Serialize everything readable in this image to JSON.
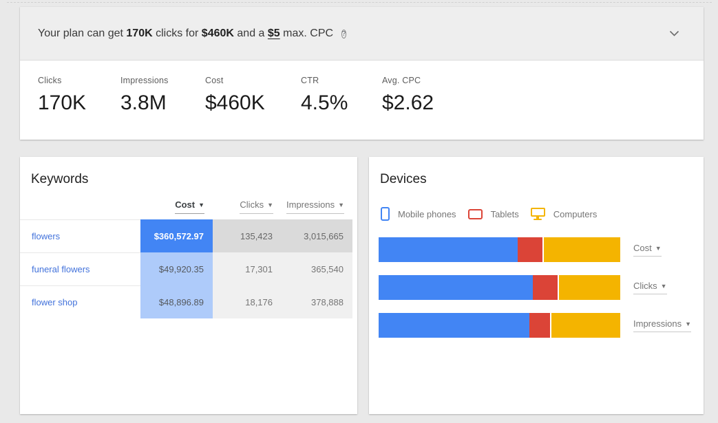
{
  "icons": {
    "dropdown_arrow": "▼",
    "help_glyph": "?"
  },
  "banner": {
    "text_prefix": "Your plan can get",
    "clicks_value": "170K",
    "text_mid1": "clicks for",
    "cost_value": "$460K",
    "text_mid2": "and a",
    "max_cpc_value": "$5",
    "text_suffix": "max. CPC"
  },
  "metrics": {
    "items": [
      {
        "label": "Clicks",
        "value": "170K"
      },
      {
        "label": "Impressions",
        "value": "3.8M"
      },
      {
        "label": "Cost",
        "value": "$460K"
      },
      {
        "label": "CTR",
        "value": "4.5%"
      },
      {
        "label": "Avg. CPC",
        "value": "$2.62"
      }
    ]
  },
  "keywords": {
    "title": "Keywords",
    "columns": [
      {
        "label": "Cost",
        "active": true
      },
      {
        "label": "Clicks",
        "active": false
      },
      {
        "label": "Impressions",
        "active": false
      }
    ],
    "rows": [
      {
        "keyword": "flowers",
        "cost": "$360,572.97",
        "clicks": "135,423",
        "impressions": "3,015,665"
      },
      {
        "keyword": "funeral flowers",
        "cost": "$49,920.35",
        "clicks": "17,301",
        "impressions": "365,540"
      },
      {
        "keyword": "flower shop",
        "cost": "$48,896.89",
        "clicks": "18,176",
        "impressions": "378,888"
      }
    ],
    "colors": {
      "cost_top_bg": "#4285f4",
      "cost_top_text": "#ffffff",
      "cost_other_bg": "#aecbfa",
      "gray_top_bg": "#dadada",
      "gray_other_bg": "#f0f0f0",
      "keyword_link": "#4272db"
    }
  },
  "devices": {
    "title": "Devices",
    "legend": [
      {
        "label": "Mobile phones",
        "color": "#4285f4"
      },
      {
        "label": "Tablets",
        "color": "#db4437"
      },
      {
        "label": "Computers",
        "color": "#f4b400"
      }
    ],
    "row_selectors": [
      {
        "label": "Cost"
      },
      {
        "label": "Clicks"
      },
      {
        "label": "Impressions"
      }
    ],
    "chart_data": {
      "type": "bar",
      "stacked": true,
      "orientation": "horizontal",
      "unit": "percent of bar width",
      "categories": [
        "Cost",
        "Clicks",
        "Impressions"
      ],
      "series": [
        {
          "name": "Mobile phones",
          "color": "#4285f4",
          "values": [
            57.5,
            63.7,
            62.3
          ]
        },
        {
          "name": "Tablets",
          "color": "#db4437",
          "values": [
            10.2,
            10.3,
            8.6
          ]
        },
        {
          "name": "Computers",
          "color": "#f4b400",
          "values": [
            32.3,
            26.0,
            29.1
          ]
        }
      ],
      "legend_position": "top",
      "grid": false
    }
  }
}
